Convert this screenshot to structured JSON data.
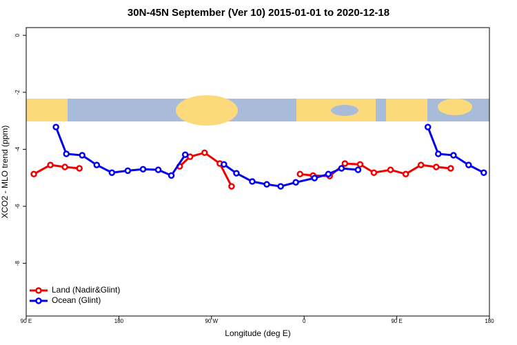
{
  "chart_data": {
    "type": "line",
    "title": "30N-45N September (Ver 10)   2015-01-01 to 2020-12-18",
    "x_label": "Longitude (deg E)",
    "y_label": "XCO2 - MLO trend (ppm)",
    "xlim": [
      90,
      540
    ],
    "xticks": [
      {
        "value": 90,
        "label": "90 E"
      },
      {
        "value": 180,
        "label": "180"
      },
      {
        "value": 270,
        "label": "90 W"
      },
      {
        "value": 360,
        "label": "0"
      },
      {
        "value": 450,
        "label": "90 E"
      },
      {
        "value": 540,
        "label": "180"
      }
    ],
    "ylim": [
      -9.85,
      0.27
    ],
    "yticks": [
      0,
      -2,
      -4,
      -6,
      -8
    ],
    "legend": "bottom-left",
    "series": [
      {
        "name": "Land (Nadir&Glint)",
        "color": "#ee0000",
        "x": [
          97.4,
          113.5,
          127.6,
          141.7,
          null,
          239.1,
          249.2,
          263.3,
          278.1,
          289.5,
          null,
          356.0,
          368.7,
          384.8,
          399.6,
          414.4,
          427.8,
          443.9,
          458.7,
          473.5,
          488.3,
          502.4
        ],
        "values": [
          -4.87,
          -4.55,
          -4.62,
          -4.67,
          null,
          -4.6,
          -4.26,
          -4.12,
          -4.5,
          -5.3,
          null,
          -4.87,
          -4.92,
          -4.94,
          -4.5,
          -4.53,
          -4.82,
          -4.72,
          -4.87,
          -4.55,
          -4.62,
          -4.67
        ]
      },
      {
        "name": "Ocean (Glint)",
        "color": "#0000ee",
        "x": [
          118.9,
          129.0,
          144.4,
          158.5,
          173.3,
          188.7,
          203.5,
          218.3,
          231.0,
          244.5,
          null,
          282.1,
          294.2,
          309.6,
          323.7,
          337.2,
          351.9,
          370.1,
          383.5,
          396.3,
          412.4,
          null,
          480.2,
          490.3,
          505.1,
          519.8,
          534.5
        ],
        "values": [
          -3.22,
          -4.16,
          -4.21,
          -4.55,
          -4.82,
          -4.75,
          -4.7,
          -4.72,
          -4.92,
          -4.19,
          null,
          -4.53,
          -4.84,
          -5.13,
          -5.23,
          -5.3,
          -5.16,
          -5.01,
          -4.87,
          -4.67,
          -4.72,
          null,
          -3.22,
          -4.16,
          -4.21,
          -4.55,
          -4.82
        ]
      }
    ]
  }
}
